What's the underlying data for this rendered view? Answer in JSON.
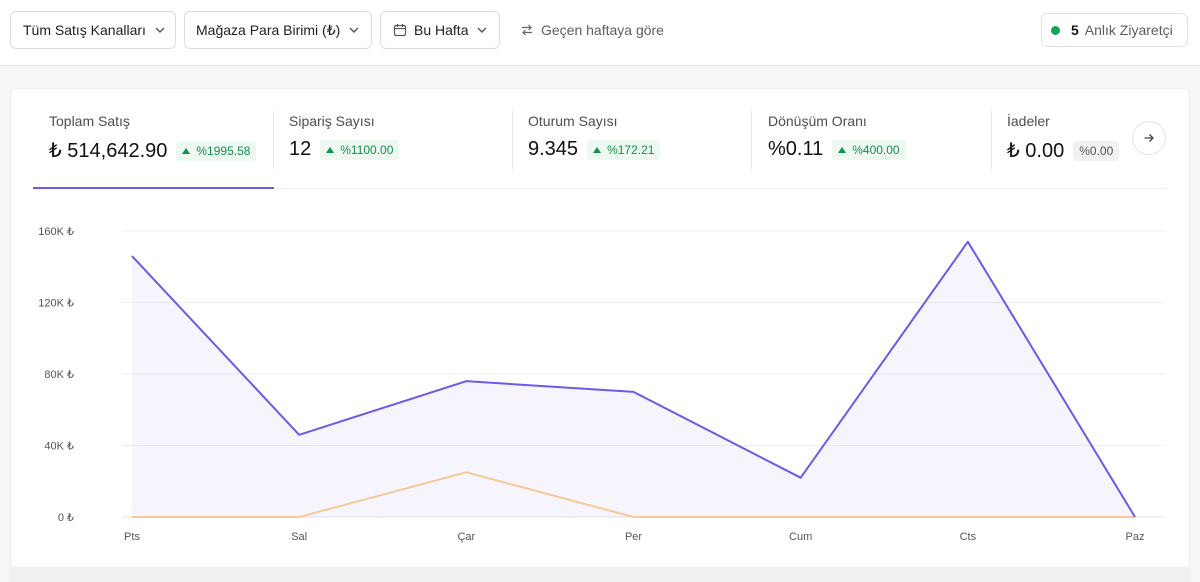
{
  "filters": {
    "channels": "Tüm Satış Kanalları",
    "currency": "Mağaza Para Birimi (₺)",
    "period": "Bu Hafta",
    "compare": "Geçen haftaya göre"
  },
  "live_visitors": {
    "count": "5",
    "label": "Anlık Ziyaretçi",
    "color": "#17a35a"
  },
  "metrics": [
    {
      "label": "Toplam Satış",
      "value": "₺ 514,642.90",
      "change": "%1995.58",
      "trend": "up"
    },
    {
      "label": "Sipariş Sayısı",
      "value": "12",
      "change": "%1100.00",
      "trend": "up"
    },
    {
      "label": "Oturum Sayısı",
      "value": "9.345",
      "change": "%172.21",
      "trend": "up"
    },
    {
      "label": "Dönüşüm Oranı",
      "value": "%0.11",
      "change": "%400.00",
      "trend": "up"
    },
    {
      "label": "İadeler",
      "value": "₺ 0.00",
      "change": "%0.00",
      "trend": "flat"
    }
  ],
  "colors": {
    "accent": "#6b5be6",
    "positive": "#15904e",
    "compare_line": "#f7c99a"
  },
  "chart_data": {
    "type": "area",
    "categories": [
      "Pts",
      "Sal",
      "Çar",
      "Per",
      "Cum",
      "Cts",
      "Paz"
    ],
    "series": [
      {
        "values": [
          146000,
          46000,
          76000,
          70000,
          22000,
          154000,
          0
        ]
      },
      {
        "values": [
          0,
          0,
          25000,
          0,
          0,
          0,
          0
        ]
      }
    ],
    "yticks": [
      "160K ₺",
      "120K ₺",
      "80K ₺",
      "40K ₺",
      "0 ₺"
    ],
    "ylim": [
      0,
      160000
    ],
    "grid": true
  }
}
